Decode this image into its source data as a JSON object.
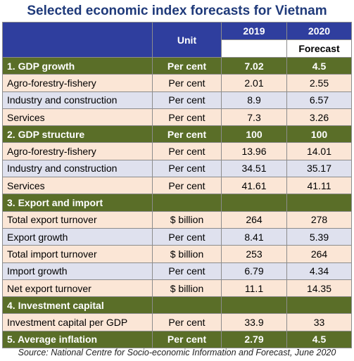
{
  "title": "Selected economic index forecasts for Vietnam",
  "header": {
    "unit": "Unit",
    "y2019": "2019",
    "y2020": "2020",
    "forecast": "Forecast"
  },
  "rows": [
    {
      "label": "1. GDP growth",
      "unit": "Per cent",
      "v2019": "7.02",
      "v2020": "4.5"
    },
    {
      "label": "Agro-forestry-fishery",
      "unit": "Per cent",
      "v2019": "2.01",
      "v2020": "2.55"
    },
    {
      "label": "Industry and construction",
      "unit": "Per cent",
      "v2019": "8.9",
      "v2020": "6.57"
    },
    {
      "label": "Services",
      "unit": "Per cent",
      "v2019": "7.3",
      "v2020": "3.26"
    },
    {
      "label": "2. GDP structure",
      "unit": "Per cent",
      "v2019": "100",
      "v2020": "100"
    },
    {
      "label": "Agro-forestry-fishery",
      "unit": "Per cent",
      "v2019": "13.96",
      "v2020": "14.01"
    },
    {
      "label": "Industry and construction",
      "unit": "Per cent",
      "v2019": "34.51",
      "v2020": "35.17"
    },
    {
      "label": "Services",
      "unit": "Per cent",
      "v2019": "41.61",
      "v2020": "41.11"
    },
    {
      "label": "3. Export and import",
      "unit": "",
      "v2019": "",
      "v2020": ""
    },
    {
      "label": "Total export turnover",
      "unit": "$ billion",
      "v2019": "264",
      "v2020": "278"
    },
    {
      "label": "Export growth",
      "unit": "Per cent",
      "v2019": "8.41",
      "v2020": "5.39"
    },
    {
      "label": "Total import turnover",
      "unit": "$ billion",
      "v2019": "253",
      "v2020": "264"
    },
    {
      "label": "Import growth",
      "unit": "Per cent",
      "v2019": "6.79",
      "v2020": "4.34"
    },
    {
      "label": "Net export turnover",
      "unit": "$ billion",
      "v2019": "11.1",
      "v2020": "14.35"
    },
    {
      "label": "4. Investment capital",
      "unit": "",
      "v2019": "",
      "v2020": ""
    },
    {
      "label": "Investment capital per GDP",
      "unit": "Per cent",
      "v2019": "33.9",
      "v2020": "33"
    },
    {
      "label": "5. Average inflation",
      "unit": "Per cent",
      "v2019": "2.79",
      "v2020": "4.5"
    }
  ],
  "source": "Source: National Centre for Socio-economic Information and Forecast, June 2020",
  "colors": {
    "header": "#2f3e9e",
    "section": "#5a6e28",
    "pink_row": "#fbe6d6",
    "lavender_row": "#dfe1ee",
    "title": "#1f3a7a"
  }
}
